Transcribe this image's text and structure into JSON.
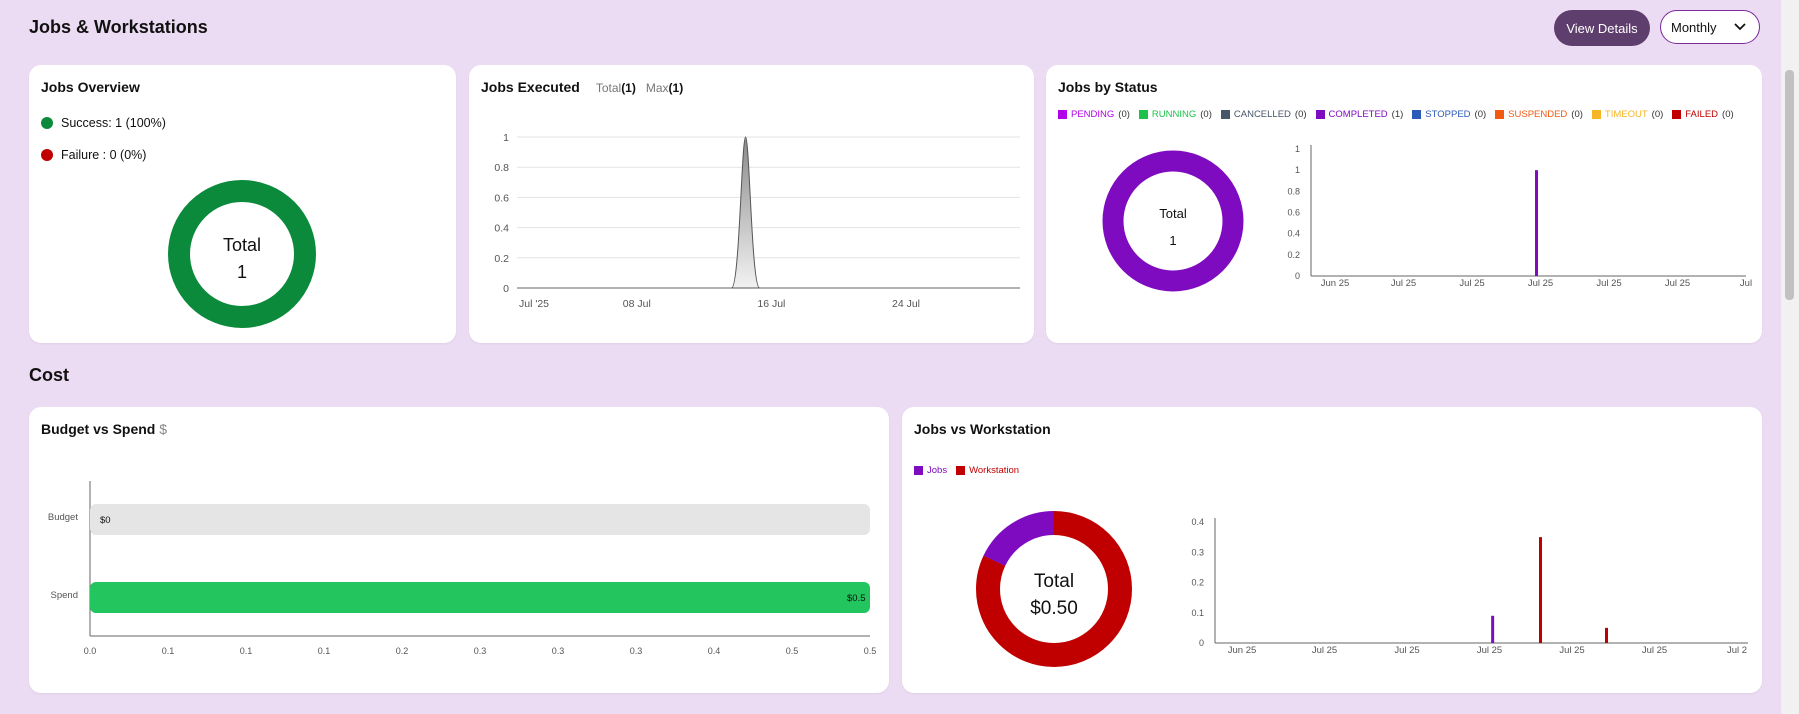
{
  "header": {
    "title": "Jobs & Workstations",
    "view_details": "View Details",
    "period": "Monthly"
  },
  "jobs_overview": {
    "title": "Jobs Overview",
    "success_label": "Success: 1 (100%)",
    "failure_label": "Failure : 0 (0%)",
    "total_label": "Total",
    "total_value": "1",
    "colors": {
      "success": "#0b8a3c",
      "failure": "#c00000"
    }
  },
  "jobs_executed": {
    "title": "Jobs Executed",
    "total_label": "Total",
    "total_value": "(1)",
    "max_label": "Max",
    "max_value": "(1)"
  },
  "jobs_by_status": {
    "title": "Jobs by Status",
    "legend": [
      {
        "label": "PENDING",
        "count": "(0)",
        "color": "#b100e8"
      },
      {
        "label": "RUNNING",
        "count": "(0)",
        "color": "#1ec24a"
      },
      {
        "label": "CANCELLED",
        "count": "(0)",
        "color": "#475569"
      },
      {
        "label": "COMPLETED",
        "count": "(1)",
        "color": "#7e0bbf"
      },
      {
        "label": "STOPPED",
        "count": "(0)",
        "color": "#2d5bb8"
      },
      {
        "label": "SUSPENDED",
        "count": "(0)",
        "color": "#f05a12"
      },
      {
        "label": "TIMEOUT",
        "count": "(0)",
        "color": "#f6b526"
      },
      {
        "label": "FAILED",
        "count": "(0)",
        "color": "#c00000"
      }
    ],
    "total_label": "Total",
    "total_value": "1"
  },
  "cost": {
    "title": "Cost"
  },
  "budget_vs_spend": {
    "title": "Budget vs Spend",
    "currency": "$"
  },
  "jobs_vs_workstation": {
    "title": "Jobs vs Workstation",
    "legend": [
      {
        "label": "Jobs",
        "color": "#7e0bbf"
      },
      {
        "label": "Workstation",
        "color": "#c00000"
      }
    ],
    "total_label": "Total",
    "total_value": "$0.50"
  },
  "chart_data": [
    {
      "type": "pie",
      "title": "Jobs Overview",
      "categories": [
        "Success",
        "Failure"
      ],
      "values": [
        1,
        0
      ],
      "colors": [
        "#0b8a3c",
        "#c00000"
      ],
      "donut": true
    },
    {
      "type": "area",
      "title": "Jobs Executed",
      "x_tick_labels": [
        "Jul '25",
        "08 Jul",
        "16 Jul",
        "24 Jul"
      ],
      "y_tick_labels": [
        "0",
        "0.2",
        "0.4",
        "0.6",
        "0.8",
        "1"
      ],
      "ylim": [
        0,
        1
      ],
      "series": [
        {
          "x": [
            "2025-07-15"
          ],
          "values": [
            1
          ]
        }
      ],
      "grid": true
    },
    {
      "type": "pie",
      "title": "Jobs by Status",
      "categories": [
        "COMPLETED"
      ],
      "values": [
        1
      ],
      "colors": [
        "#7e0bbf"
      ],
      "donut": true
    },
    {
      "type": "bar",
      "title": "Jobs by Status",
      "x_tick_labels": [
        "Jun 25",
        "Jul 25",
        "Jul 25",
        "Jul 25",
        "Jul 25",
        "Jul 25",
        "Jul"
      ],
      "y_tick_labels": [
        "0",
        "0.2",
        "0.4",
        "0.6",
        "0.8",
        "1",
        "1"
      ],
      "ylim": [
        0,
        1.2
      ],
      "series": [
        {
          "name": "COMPLETED",
          "x_position": 3.72,
          "values": [
            1
          ],
          "color": "#7e0bbf"
        }
      ]
    },
    {
      "type": "bar",
      "title": "Budget vs Spend",
      "orientation": "horizontal",
      "categories": [
        "Budget",
        "Spend"
      ],
      "values": [
        0,
        0.5
      ],
      "value_labels": [
        "$0",
        "$0.5"
      ],
      "colors": [
        "#e5e5e5",
        "#22c55e"
      ],
      "x_tick_labels": [
        "0.0",
        "0.1",
        "0.1",
        "0.1",
        "0.2",
        "0.3",
        "0.3",
        "0.3",
        "0.4",
        "0.5",
        "0.5"
      ],
      "xlim": [
        0,
        0.5
      ]
    },
    {
      "type": "pie",
      "title": "Jobs vs Workstation",
      "categories": [
        "Jobs",
        "Workstation"
      ],
      "values": [
        0.09,
        0.41
      ],
      "colors": [
        "#7e0bbf",
        "#c00000"
      ],
      "donut": true
    },
    {
      "type": "bar",
      "title": "Jobs vs Workstation",
      "x_tick_labels": [
        "Jun 25",
        "Jul 25",
        "Jul 25",
        "Jul 25",
        "Jul 25",
        "Jul 25",
        "Jul 2"
      ],
      "y_tick_labels": [
        "0",
        "0.1",
        "0.2",
        "0.3",
        "0.4"
      ],
      "ylim": [
        0,
        0.4
      ],
      "series": [
        {
          "name": "Jobs",
          "points": [
            {
              "x_position": 3.82,
              "value": 0.09
            }
          ],
          "color": "#7e0bbf"
        },
        {
          "name": "Workstation",
          "points": [
            {
              "x_position": 4.4,
              "value": 0.35
            },
            {
              "x_position": 5.2,
              "value": 0.05
            }
          ],
          "color": "#c00000"
        }
      ]
    }
  ]
}
